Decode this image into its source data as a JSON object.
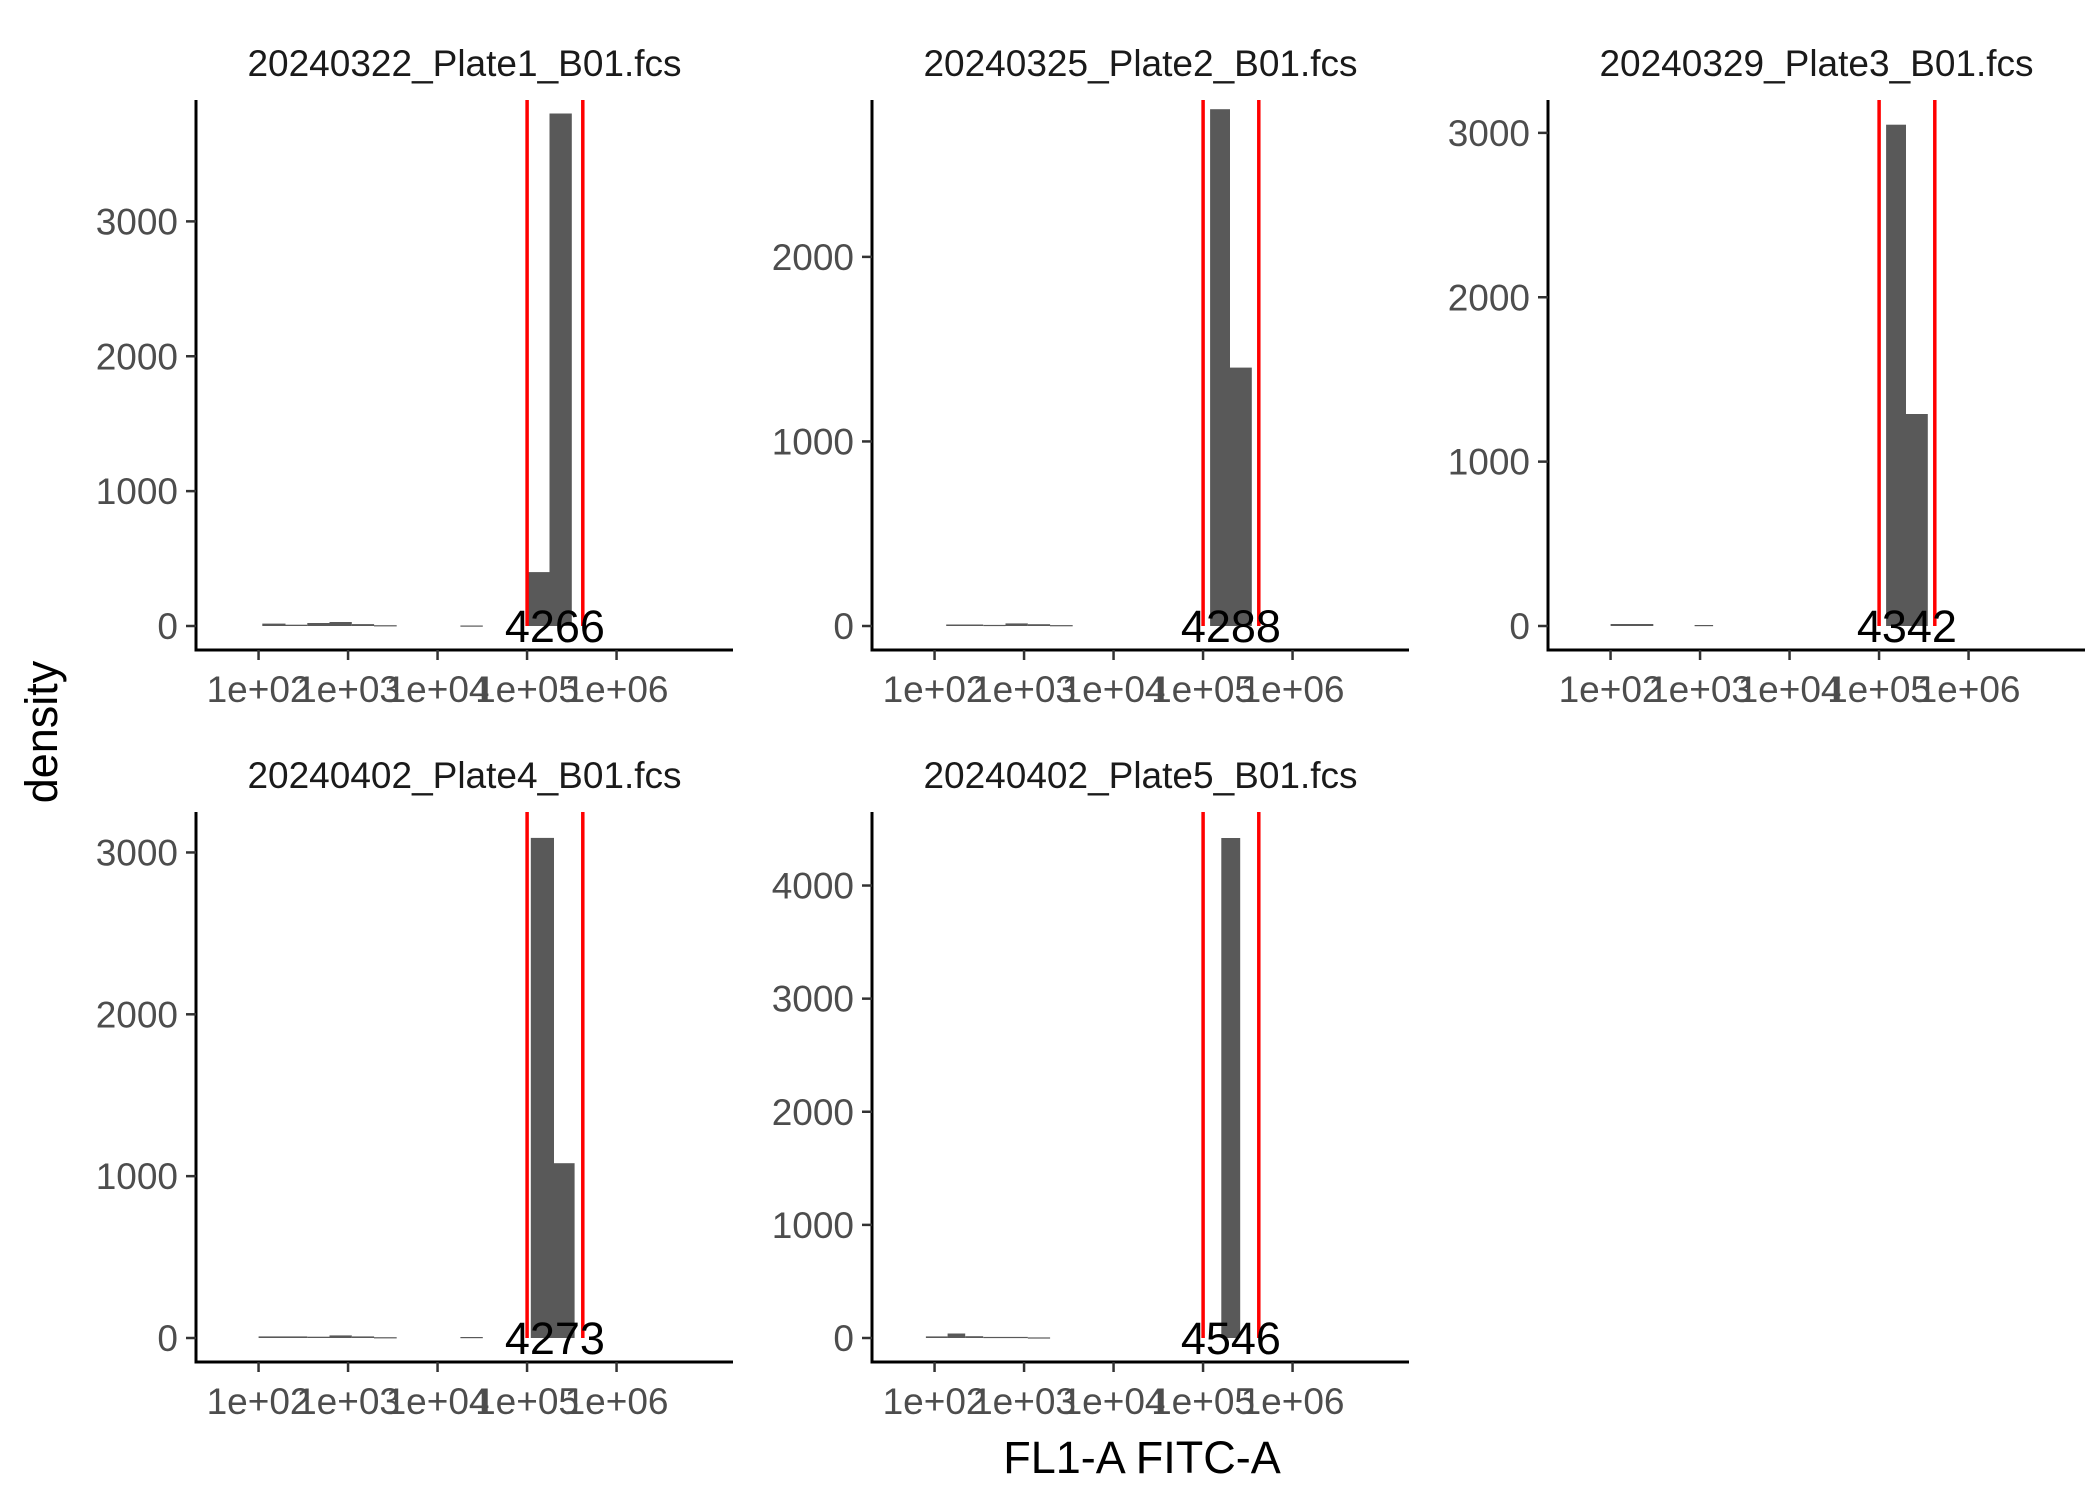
{
  "chart_data": {
    "type": "bar",
    "xlabel": "FL1-A FITC-A",
    "ylabel": "density",
    "x_scale": "log10",
    "x_ticks": [
      "1e+02",
      "1e+03",
      "1e+04",
      "1e+05",
      "1e+06"
    ],
    "x_tick_values": [
      100,
      1000,
      10000,
      100000,
      1000000
    ],
    "xlim": [
      20,
      20000000
    ],
    "gate_color": "#ff0000",
    "bar_color": "#595959",
    "grid": false,
    "panels": [
      {
        "title": "20240322_Plate1_B01.fcs",
        "count_label": "4266",
        "gates": [
          100000,
          420000
        ],
        "ylim": [
          0,
          3900
        ],
        "y_ticks": [
          0,
          1000,
          2000,
          3000
        ],
        "y_tick_labels": [
          "0",
          "1000",
          "2000",
          "3000"
        ],
        "bins": [
          {
            "x0": 110,
            "x1": 200,
            "value": 18
          },
          {
            "x0": 200,
            "x1": 350,
            "value": 10
          },
          {
            "x0": 350,
            "x1": 620,
            "value": 22
          },
          {
            "x0": 620,
            "x1": 1100,
            "value": 30
          },
          {
            "x0": 1100,
            "x1": 1950,
            "value": 14
          },
          {
            "x0": 1950,
            "x1": 3500,
            "value": 6
          },
          {
            "x0": 18000,
            "x1": 32000,
            "value": 4
          },
          {
            "x0": 100000,
            "x1": 178000,
            "value": 400
          },
          {
            "x0": 178000,
            "x1": 316000,
            "value": 3800
          }
        ]
      },
      {
        "title": "20240325_Plate2_B01.fcs",
        "count_label": "4288",
        "gates": [
          100000,
          420000
        ],
        "ylim": [
          0,
          2850
        ],
        "y_ticks": [
          0,
          1000,
          2000
        ],
        "y_tick_labels": [
          "0",
          "1000",
          "2000"
        ],
        "bins": [
          {
            "x0": 135,
            "x1": 350,
            "value": 8
          },
          {
            "x0": 350,
            "x1": 620,
            "value": 6
          },
          {
            "x0": 620,
            "x1": 1100,
            "value": 14
          },
          {
            "x0": 1100,
            "x1": 1950,
            "value": 10
          },
          {
            "x0": 1950,
            "x1": 3500,
            "value": 5
          },
          {
            "x0": 120000,
            "x1": 200000,
            "value": 2800
          },
          {
            "x0": 200000,
            "x1": 350000,
            "value": 1400
          }
        ]
      },
      {
        "title": "20240329_Plate3_B01.fcs",
        "count_label": "4342",
        "gates": [
          100000,
          420000
        ],
        "ylim": [
          0,
          3200
        ],
        "y_ticks": [
          0,
          1000,
          2000,
          3000
        ],
        "y_tick_labels": [
          "0",
          "1000",
          "2000",
          "3000"
        ],
        "bins": [
          {
            "x0": 100,
            "x1": 300,
            "value": 12
          },
          {
            "x0": 870,
            "x1": 1400,
            "value": 6
          },
          {
            "x0": 120000,
            "x1": 200000,
            "value": 3050
          },
          {
            "x0": 200000,
            "x1": 350000,
            "value": 1290
          }
        ]
      },
      {
        "title": "20240402_Plate4_B01.fcs",
        "count_label": "4273",
        "gates": [
          100000,
          420000
        ],
        "ylim": [
          0,
          3250
        ],
        "y_ticks": [
          0,
          1000,
          2000,
          3000
        ],
        "y_tick_labels": [
          "0",
          "1000",
          "2000",
          "3000"
        ],
        "bins": [
          {
            "x0": 100,
            "x1": 350,
            "value": 10
          },
          {
            "x0": 350,
            "x1": 620,
            "value": 8
          },
          {
            "x0": 620,
            "x1": 1100,
            "value": 16
          },
          {
            "x0": 1100,
            "x1": 1950,
            "value": 10
          },
          {
            "x0": 1950,
            "x1": 3500,
            "value": 5
          },
          {
            "x0": 18000,
            "x1": 32000,
            "value": 6
          },
          {
            "x0": 110000,
            "x1": 200000,
            "value": 3090
          },
          {
            "x0": 200000,
            "x1": 340000,
            "value": 1080
          }
        ]
      },
      {
        "title": "20240402_Plate5_B01.fcs",
        "count_label": "4546",
        "gates": [
          100000,
          420000
        ],
        "ylim": [
          0,
          4650
        ],
        "y_ticks": [
          0,
          1000,
          2000,
          3000,
          4000
        ],
        "y_tick_labels": [
          "0",
          "1000",
          "2000",
          "3000",
          "4000"
        ],
        "bins": [
          {
            "x0": 80,
            "x1": 140,
            "value": 14
          },
          {
            "x0": 140,
            "x1": 220,
            "value": 40
          },
          {
            "x0": 220,
            "x1": 350,
            "value": 16
          },
          {
            "x0": 350,
            "x1": 1100,
            "value": 10
          },
          {
            "x0": 1100,
            "x1": 1950,
            "value": 5
          },
          {
            "x0": 160000,
            "x1": 260000,
            "value": 4420
          }
        ]
      }
    ]
  }
}
